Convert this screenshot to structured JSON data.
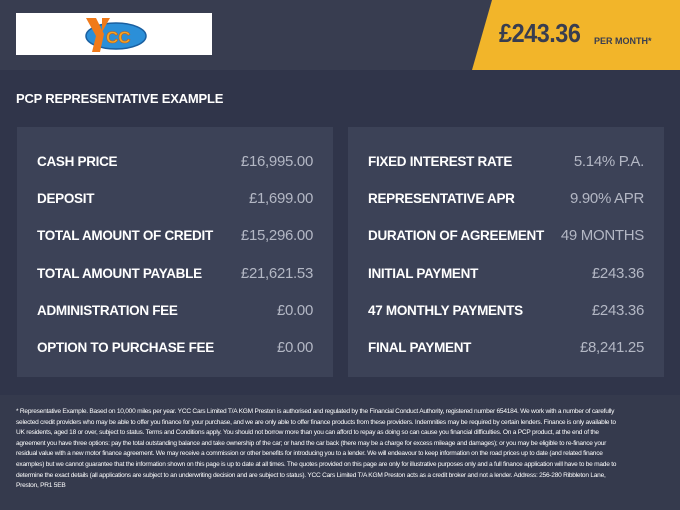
{
  "header": {
    "logo_text": "YCC",
    "price": "£243.36",
    "per_month": "PER MONTH*"
  },
  "title": "PCP REPRESENTATIVE EXAMPLE",
  "left": [
    {
      "label": "CASH PRICE",
      "value": "£16,995.00"
    },
    {
      "label": "DEPOSIT",
      "value": "£1,699.00"
    },
    {
      "label": "TOTAL AMOUNT OF CREDIT",
      "value": "£15,296.00"
    },
    {
      "label": "TOTAL AMOUNT PAYABLE",
      "value": "£21,621.53"
    },
    {
      "label": "ADMINISTRATION FEE",
      "value": "£0.00"
    },
    {
      "label": "OPTION TO PURCHASE FEE",
      "value": "£0.00"
    }
  ],
  "right": [
    {
      "label": "FIXED INTEREST RATE",
      "value": "5.14% P.A."
    },
    {
      "label": "REPRESENTATIVE APR",
      "value": "9.90% APR"
    },
    {
      "label": "DURATION OF AGREEMENT",
      "value": "49 MONTHS"
    },
    {
      "label": "INITIAL PAYMENT",
      "value": "£243.36"
    },
    {
      "label": "47 MONTHLY PAYMENTS",
      "value": "£243.36"
    },
    {
      "label": "FINAL PAYMENT",
      "value": "£8,241.25"
    }
  ],
  "disclaimer": "* Representative Example. Based on 10,000 miles per year. YCC Cars Limited T/A KGM Preston  is authorised and regulated by the Financial Conduct Authority, registered number 654184. We work with a number of carefully selected credit providers who may be able to offer you finance for your purchase, and we are only able to offer finance products from these providers. Indemnities may be required by certain lenders. Finance is only available to UK residents, aged 18 or over, subject to status. Terms and Conditions apply. You should not borrow more than you can afford to repay as doing so can cause you financial difficulties. On a PCP product, at the end of the agreement you have three options: pay the total outstanding balance and take ownership of the car; or hand the car back (there may be a charge for excess mileage and damages); or you may be eligible to re-finance your residual value with a new motor finance agreement. We may receive a commission or other benefits for introducing you to a lender. We will endeavour to keep information on the road prices up to date (and related finance examples) but we cannot guarantee that the information shown on this page is up to date at all times. The quotes provided on this page are only for illustrative purposes only and a full finance application will have to be made to determine the exact details (all applications are subject to an underwriting decision and are subject to status). YCC Cars Limited T/A KGM Preston  acts as a credit broker and not a lender. Address: 256-280 Ribbleton Lane, Preston, PR1 5EB",
  "colors": {
    "accent": "#f2b52a",
    "header": "#383d50",
    "background": "#30354a",
    "panel": "#3c4257"
  }
}
